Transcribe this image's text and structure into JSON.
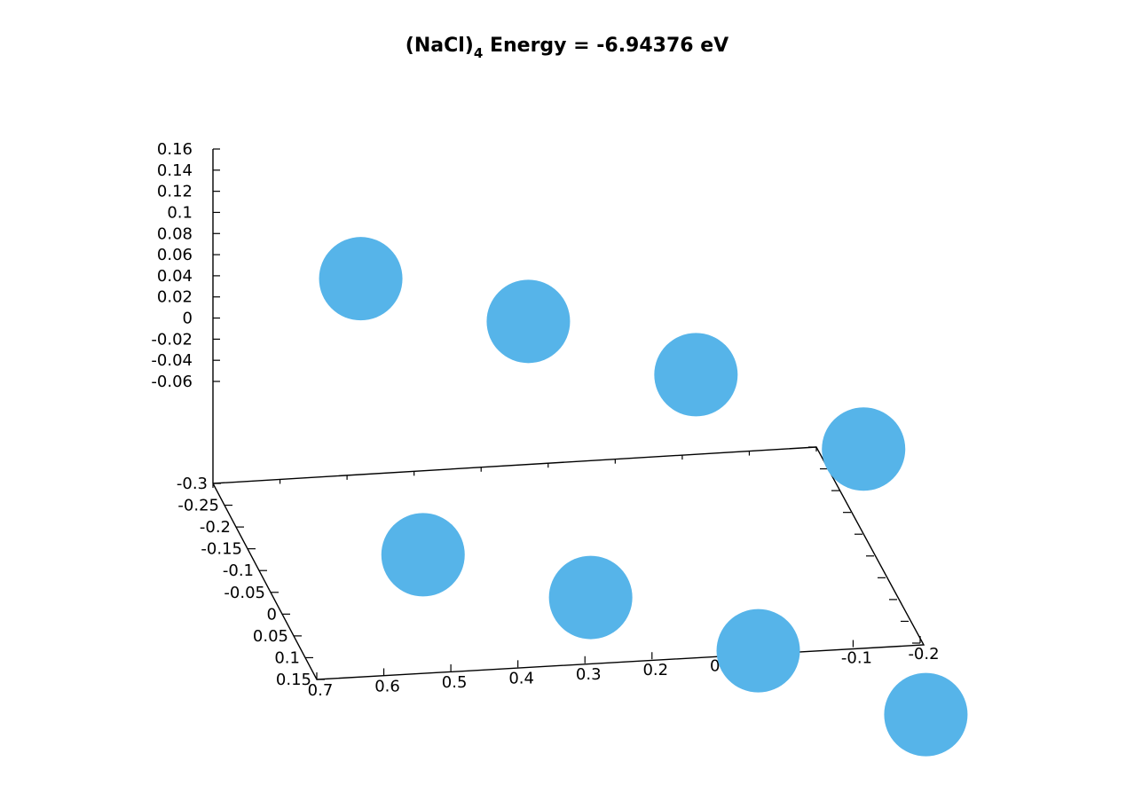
{
  "chart_data": {
    "type": "scatter",
    "title": {
      "prefix": "(NaCl)",
      "subscript": "4",
      "suffix": " Energy = -6.94376 eV"
    },
    "marker_color": "#56b4e9",
    "x_ticks": [
      "-0.2",
      "-0.1",
      "0",
      "0.1",
      "0.2",
      "0.3",
      "0.4",
      "0.5",
      "0.6",
      "0.7"
    ],
    "x_tick_values": [
      -0.2,
      -0.1,
      0,
      0.1,
      0.2,
      0.3,
      0.4,
      0.5,
      0.6,
      0.7
    ],
    "y_ticks": [
      "0.15",
      "0.1",
      "0.05",
      "0",
      "-0.05",
      "-0.1",
      "-0.15",
      "-0.2",
      "-0.25",
      "-0.3"
    ],
    "y_tick_values": [
      0.15,
      0.1,
      0.05,
      0,
      -0.05,
      -0.1,
      -0.15,
      -0.2,
      -0.25,
      -0.3
    ],
    "z_ticks": [
      "0.16",
      "0.14",
      "0.12",
      "0.1",
      "0.08",
      "0.06",
      "0.04",
      "0.02",
      "0",
      "-0.02",
      "-0.04",
      "-0.06"
    ],
    "z_tick_values": [
      0.16,
      0.14,
      0.12,
      0.1,
      0.08,
      0.06,
      0.04,
      0.02,
      0,
      -0.02,
      -0.04,
      -0.06
    ],
    "xlim": [
      -0.2,
      0.7
    ],
    "ylim": [
      -0.3,
      0.15
    ],
    "zlim": [
      -0.06,
      0.16
    ],
    "points": [
      {
        "x": 0.6,
        "y": -0.3,
        "z": 0.13
      },
      {
        "x": 0.6,
        "y": -0.03,
        "z": -0.02
      },
      {
        "x": 0.35,
        "y": -0.3,
        "z": 0.08
      },
      {
        "x": 0.35,
        "y": -0.03,
        "z": -0.07
      },
      {
        "x": 0.1,
        "y": -0.3,
        "z": 0.02
      },
      {
        "x": 0.1,
        "y": -0.03,
        "z": -0.13
      },
      {
        "x": -0.15,
        "y": -0.3,
        "z": -0.06
      },
      {
        "x": -0.15,
        "y": -0.03,
        "z": -0.2
      }
    ]
  }
}
